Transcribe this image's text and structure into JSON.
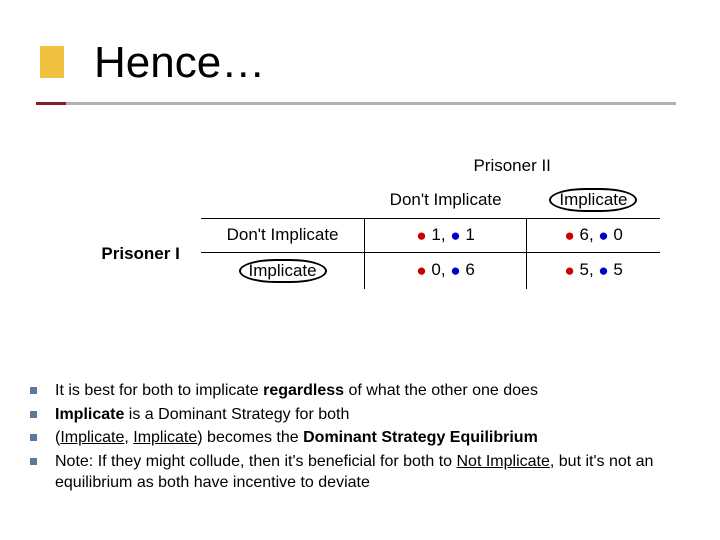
{
  "title": "Hence…",
  "colors": {
    "gold": "#f0c040",
    "maroon": "#8a1a2a",
    "gray": "#b0b0b0",
    "bullet": "#5a7a9a",
    "red": "#cc0000",
    "blue": "#0000cc",
    "black": "#000000",
    "bg": "#ffffff"
  },
  "table": {
    "column_player": "Prisoner II",
    "row_player": "Prisoner I",
    "col_headers": [
      "Don't Implicate",
      "Implicate"
    ],
    "row_headers": [
      "Don't Implicate",
      "Implicate"
    ],
    "cells": {
      "r0c0": {
        "a": "1",
        "b": "1"
      },
      "r0c1": {
        "a": "6",
        "b": "0"
      },
      "r1c0": {
        "a": "0",
        "b": "6"
      },
      "r1c1": {
        "a": "5",
        "b": "5"
      }
    },
    "circled_row_header_index": 1,
    "circled_col_header_index": 1
  },
  "bullets": {
    "b0_pre": "It is best for both to implicate ",
    "b0_bold": "regardless",
    "b0_post": " of what the other one does",
    "b1_bold": "Implicate",
    "b1_post": " is a Dominant Strategy for both",
    "b2_pre": "(",
    "b2_u1": "Implicate",
    "b2_mid": ", ",
    "b2_u2": "Implicate",
    "b2_mid2": ") becomes the ",
    "b2_bold": "Dominant Strategy Equilibrium",
    "b3_pre": "Note: If they might collude, then it's beneficial for both to ",
    "b3_u": "Not Implicate",
    "b3_post": ", but it's not an equilibrium as both have incentive to deviate"
  }
}
